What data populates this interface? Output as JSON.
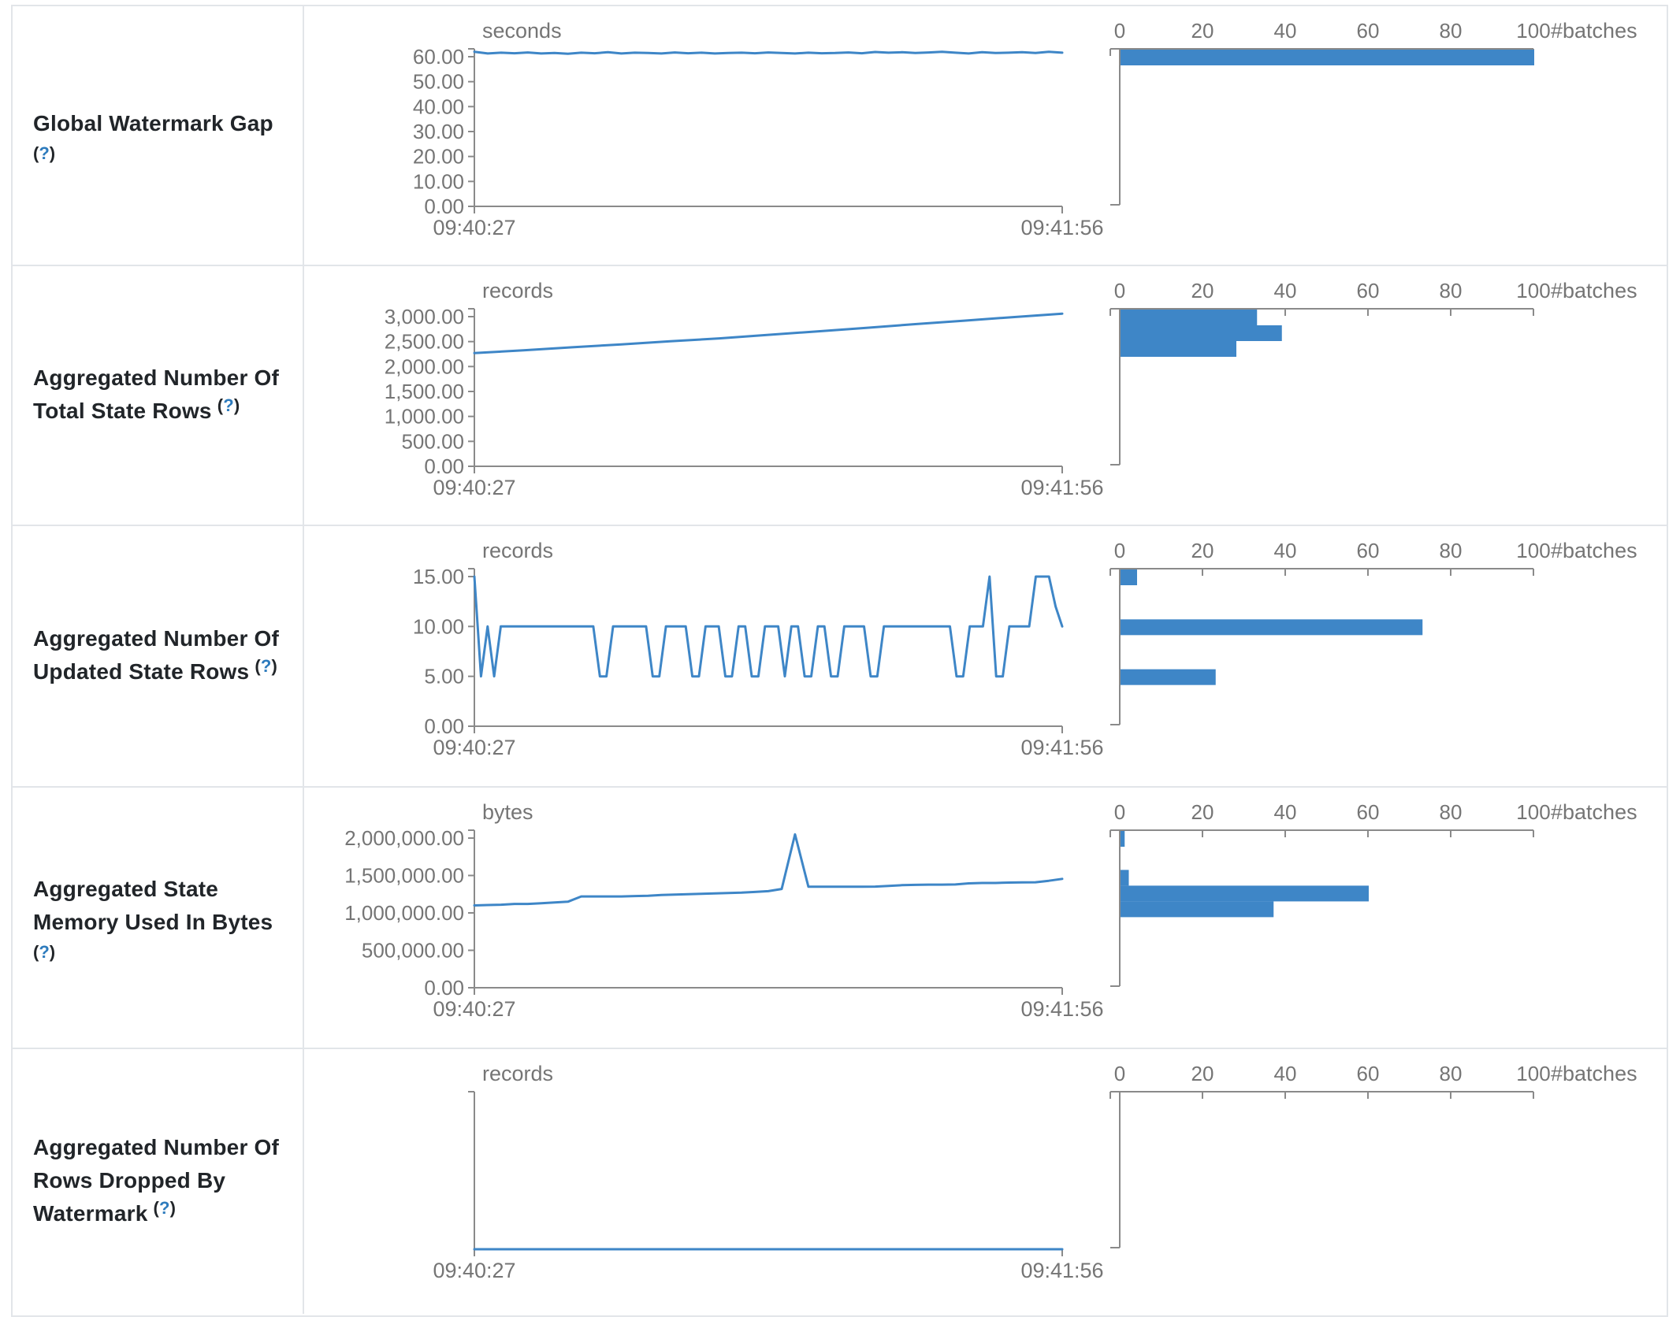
{
  "colors": {
    "accent_blue": "#3e86c7",
    "axis_gray": "#8a8a8a",
    "text_gray": "#757575",
    "label_dark": "#212529",
    "help_blue": "#2d7bbd",
    "border_gray": "#e2e5e9"
  },
  "help": {
    "open": "(",
    "q": "?",
    "close": ")"
  },
  "time_axis": {
    "start": "09:40:27",
    "end": "09:41:56"
  },
  "histogram_axis": {
    "tick_values": [
      0,
      20,
      40,
      60,
      80,
      100
    ],
    "tick_labels": [
      "0",
      "20",
      "40",
      "60",
      "80",
      "100"
    ],
    "unit_label": "#batches",
    "max": 100
  },
  "chart_data": [
    {
      "label_lines": [
        "Global Watermark Gap"
      ],
      "help_inline": false,
      "timeline": {
        "type": "line",
        "unit": "seconds",
        "x_start": "09:40:27",
        "x_end": "09:41:56",
        "y_top_tick": 60,
        "y_ticks": [
          {
            "v": 60,
            "label": "60.00"
          },
          {
            "v": 50,
            "label": "50.00"
          },
          {
            "v": 40,
            "label": "40.00"
          },
          {
            "v": 30,
            "label": "30.00"
          },
          {
            "v": 20,
            "label": "20.00"
          },
          {
            "v": 10,
            "label": "10.00"
          },
          {
            "v": 0,
            "label": "0.00"
          }
        ],
        "values": [
          62,
          61.3,
          61.6,
          61.4,
          61.7,
          61.3,
          61.5,
          61.2,
          61.6,
          61.4,
          61.8,
          61.3,
          61.6,
          61.5,
          61.3,
          61.7,
          61.4,
          61.6,
          61.3,
          61.5,
          61.6,
          61.4,
          61.7,
          61.5,
          61.3,
          61.6,
          61.4,
          61.5,
          61.7,
          61.4,
          61.9,
          61.6,
          61.8,
          61.5,
          61.7,
          62,
          61.6,
          61.3,
          61.8,
          61.5,
          61.6,
          61.8,
          61.5,
          62,
          61.6
        ]
      },
      "histogram": {
        "type": "bar",
        "xlabel": "#batches",
        "bars": [
          {
            "bin": 61.5,
            "count": 100
          }
        ]
      }
    },
    {
      "label_lines": [
        "Aggregated Number Of",
        "Total State Rows"
      ],
      "help_inline": true,
      "timeline": {
        "type": "line",
        "unit": "records",
        "x_start": "09:40:27",
        "x_end": "09:41:56",
        "y_top_tick": 3000,
        "y_ticks": [
          {
            "v": 3000,
            "label": "3,000.00"
          },
          {
            "v": 2500,
            "label": "2,500.00"
          },
          {
            "v": 2000,
            "label": "2,000.00"
          },
          {
            "v": 1500,
            "label": "1,500.00"
          },
          {
            "v": 1000,
            "label": "1,000.00"
          },
          {
            "v": 500,
            "label": "500.00"
          },
          {
            "v": 0,
            "label": "0.00"
          }
        ],
        "values": [
          2270,
          2325,
          2385,
          2445,
          2505,
          2565,
          2635,
          2705,
          2775,
          2850,
          2920,
          2990,
          3060
        ]
      },
      "histogram": {
        "type": "bar",
        "xlabel": "#batches",
        "bars": [
          {
            "bin": 3060,
            "count": 33
          },
          {
            "bin": 2740,
            "count": 39
          },
          {
            "bin": 2420,
            "count": 28
          }
        ]
      }
    },
    {
      "label_lines": [
        "Aggregated Number Of",
        "Updated State Rows"
      ],
      "help_inline": true,
      "timeline": {
        "type": "line",
        "unit": "records",
        "x_start": "09:40:27",
        "x_end": "09:41:56",
        "y_top_tick": 15,
        "y_ticks": [
          {
            "v": 15,
            "label": "15.00"
          },
          {
            "v": 10,
            "label": "10.00"
          },
          {
            "v": 5,
            "label": "5.00"
          },
          {
            "v": 0,
            "label": "0.00"
          }
        ],
        "values": [
          15,
          5,
          10,
          5,
          10,
          10,
          10,
          10,
          10,
          10,
          10,
          10,
          10,
          10,
          10,
          10,
          10,
          10,
          10,
          5,
          5,
          10,
          10,
          10,
          10,
          10,
          10,
          5,
          5,
          10,
          10,
          10,
          10,
          5,
          5,
          10,
          10,
          10,
          5,
          5,
          10,
          10,
          5,
          5,
          10,
          10,
          10,
          5,
          10,
          10,
          5,
          5,
          10,
          10,
          5,
          5,
          10,
          10,
          10,
          10,
          5,
          5,
          10,
          10,
          10,
          10,
          10,
          10,
          10,
          10,
          10,
          10,
          10,
          5,
          5,
          10,
          10,
          10,
          15,
          5,
          5,
          10,
          10,
          10,
          10,
          15,
          15,
          15,
          12,
          10
        ]
      },
      "histogram": {
        "type": "bar",
        "xlabel": "#batches",
        "bars": [
          {
            "bin": 15,
            "count": 4
          },
          {
            "bin": 10,
            "count": 73
          },
          {
            "bin": 5,
            "count": 23
          }
        ]
      }
    },
    {
      "label_lines": [
        "Aggregated State",
        "Memory Used In Bytes"
      ],
      "help_inline": false,
      "timeline": {
        "type": "line",
        "unit": "bytes",
        "x_start": "09:40:27",
        "x_end": "09:41:56",
        "y_top_tick": 2000000,
        "y_ticks": [
          {
            "v": 2000000,
            "label": "2,000,000.00"
          },
          {
            "v": 1500000,
            "label": "1,500,000.00"
          },
          {
            "v": 1000000,
            "label": "1,000,000.00"
          },
          {
            "v": 500000,
            "label": "500,000.00"
          },
          {
            "v": 0,
            "label": "0.00"
          }
        ],
        "values": [
          1100000,
          1105000,
          1110000,
          1120000,
          1120000,
          1130000,
          1140000,
          1150000,
          1220000,
          1220000,
          1220000,
          1220000,
          1225000,
          1230000,
          1240000,
          1245000,
          1250000,
          1255000,
          1260000,
          1265000,
          1270000,
          1280000,
          1290000,
          1320000,
          2050000,
          1350000,
          1350000,
          1350000,
          1350000,
          1350000,
          1352000,
          1360000,
          1370000,
          1375000,
          1378000,
          1378000,
          1380000,
          1395000,
          1400000,
          1400000,
          1405000,
          1408000,
          1410000,
          1430000,
          1455000
        ]
      },
      "histogram": {
        "type": "bar",
        "xlabel": "#batches",
        "bars": [
          {
            "bin": 2050000,
            "count": 1
          },
          {
            "bin": 1480000,
            "count": 2
          },
          {
            "bin": 1345000,
            "count": 60
          },
          {
            "bin": 1140000,
            "count": 37
          }
        ]
      }
    },
    {
      "label_lines": [
        "Aggregated Number Of",
        "Rows Dropped By",
        "Watermark"
      ],
      "help_inline": true,
      "timeline": {
        "type": "line",
        "unit": "records",
        "x_start": "09:40:27",
        "x_end": "09:41:56",
        "y_top_tick": null,
        "y_ticks": [],
        "values": [
          0,
          0
        ]
      },
      "histogram": {
        "type": "bar",
        "xlabel": "#batches",
        "bars": []
      }
    }
  ]
}
